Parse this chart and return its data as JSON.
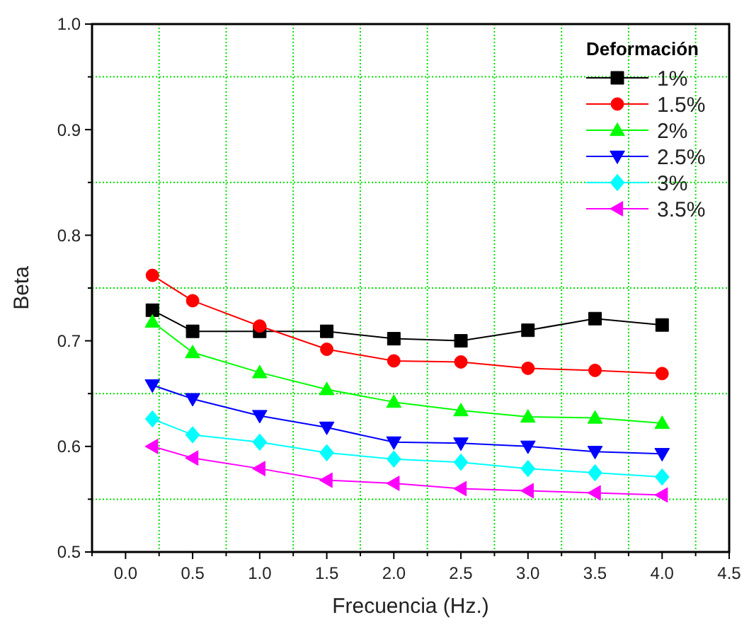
{
  "chart_data": {
    "type": "line",
    "xlabel": "Frecuencia (Hz.)",
    "ylabel": "Beta",
    "legend_title": "Deformación",
    "legend": "top right",
    "grid": true,
    "x": [
      0.2,
      0.5,
      1,
      1.5,
      2,
      2.5,
      3,
      3.5,
      4
    ],
    "xlim": [
      -0.25,
      4.5
    ],
    "ylim": [
      0.5,
      1.0
    ],
    "xticks": [
      {
        "value": -0.25,
        "label": null
      },
      {
        "value": 0,
        "label": "0.0"
      },
      {
        "value": 0.25,
        "label": null
      },
      {
        "value": 0.5,
        "label": "0.5"
      },
      {
        "value": 0.75,
        "label": null
      },
      {
        "value": 1,
        "label": "1.0"
      },
      {
        "value": 1.25,
        "label": null
      },
      {
        "value": 1.5,
        "label": "1.5"
      },
      {
        "value": 1.75,
        "label": null
      },
      {
        "value": 2,
        "label": "2.0"
      },
      {
        "value": 2.25,
        "label": null
      },
      {
        "value": 2.5,
        "label": "2.5"
      },
      {
        "value": 2.75,
        "label": null
      },
      {
        "value": 3,
        "label": "3.0"
      },
      {
        "value": 3.25,
        "label": null
      },
      {
        "value": 3.5,
        "label": "3.5"
      },
      {
        "value": 3.75,
        "label": null
      },
      {
        "value": 4,
        "label": "4.0"
      },
      {
        "value": 4.25,
        "label": null
      },
      {
        "value": 4.5,
        "label": "4.5"
      }
    ],
    "yticks": [
      0.5,
      {
        "value": 0.55,
        "label": null
      },
      0.6,
      {
        "value": 0.65,
        "label": null
      },
      0.7,
      {
        "value": 0.75,
        "label": null
      },
      0.8,
      {
        "value": 0.85,
        "label": null
      },
      0.9,
      {
        "value": 0.95,
        "label": null
      },
      {
        "value": 1.0,
        "label": "1.0"
      }
    ],
    "series": [
      {
        "name": "1%",
        "color": "#000000",
        "marker": "square",
        "values": [
          0.729,
          0.709,
          0.709,
          0.709,
          0.702,
          0.7,
          0.71,
          0.721,
          0.715
        ]
      },
      {
        "name": "1.5%",
        "color": "#ff0000",
        "marker": "circle",
        "values": [
          0.762,
          0.738,
          0.714,
          0.692,
          0.681,
          0.68,
          0.674,
          0.672,
          0.669
        ]
      },
      {
        "name": "2%",
        "color": "#00ff00",
        "marker": "triangle",
        "values": [
          0.718,
          0.689,
          0.67,
          0.654,
          0.642,
          0.634,
          0.628,
          0.627,
          0.622
        ]
      },
      {
        "name": "2.5%",
        "color": "#0000ff",
        "marker": "triangle-down",
        "values": [
          0.658,
          0.645,
          0.629,
          0.618,
          0.604,
          0.603,
          0.6,
          0.595,
          0.593
        ]
      },
      {
        "name": "3%",
        "color": "#00ffff",
        "marker": "diamond",
        "values": [
          0.626,
          0.611,
          0.604,
          0.594,
          0.588,
          0.585,
          0.579,
          0.575,
          0.571
        ]
      },
      {
        "name": "3.5%",
        "color": "#ff00ff",
        "marker": "triangle-left",
        "values": [
          0.6,
          0.589,
          0.579,
          0.568,
          0.565,
          0.56,
          0.558,
          0.556,
          0.554
        ]
      }
    ]
  }
}
